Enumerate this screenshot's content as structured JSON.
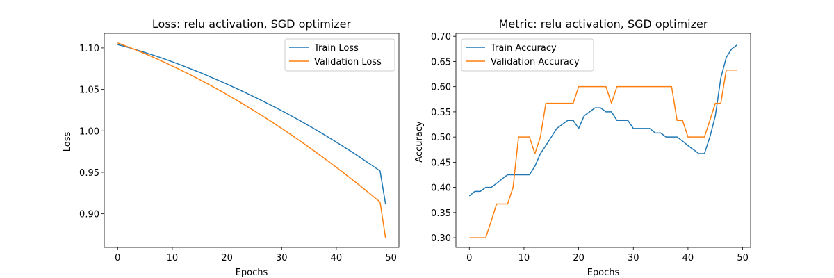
{
  "chart_data": [
    {
      "type": "line",
      "title": "Loss: relu activation, SGD optimizer",
      "xlabel": "Epochs",
      "ylabel": "Loss",
      "xlim": [
        -2.45,
        51.45
      ],
      "ylim": [
        0.8595,
        1.1175
      ],
      "xticks": [
        "0",
        "10",
        "20",
        "30",
        "40",
        "50"
      ],
      "yticks": [
        "0.90",
        "0.95",
        "1.00",
        "1.05",
        "1.10"
      ],
      "legend_position": "upper right",
      "series": [
        {
          "name": "Train Loss",
          "color": "#1f77b4",
          "values": [
            1.104,
            1.1023,
            1.1005,
            1.0985,
            1.0965,
            1.0945,
            1.0923,
            1.0902,
            1.0879,
            1.0856,
            1.0832,
            1.0808,
            1.0783,
            1.0757,
            1.0731,
            1.0705,
            1.0677,
            1.0649,
            1.0621,
            1.0592,
            1.0563,
            1.0533,
            1.0503,
            1.0472,
            1.0441,
            1.0409,
            1.0377,
            1.0344,
            1.0311,
            1.0277,
            1.0243,
            1.0208,
            1.0172,
            1.0136,
            1.0099,
            1.0061,
            1.0023,
            0.9984,
            0.9945,
            0.9905,
            0.9864,
            0.9823,
            0.9781,
            0.9739,
            0.9696,
            0.9652,
            0.9607,
            0.9562,
            0.9516,
            0.912
          ]
        },
        {
          "name": "Validation Loss",
          "color": "#ff7f0e",
          "values": [
            1.106,
            1.1035,
            1.101,
            1.0984,
            1.0957,
            1.093,
            1.0902,
            1.0873,
            1.0843,
            1.0813,
            1.0782,
            1.0751,
            1.0718,
            1.0686,
            1.0652,
            1.0618,
            1.0583,
            1.0548,
            1.0511,
            1.0475,
            1.0437,
            1.0399,
            1.0361,
            1.0321,
            1.0281,
            1.0241,
            1.02,
            1.0158,
            1.0116,
            1.0073,
            1.0029,
            0.9985,
            0.994,
            0.9895,
            0.9849,
            0.9802,
            0.9755,
            0.9707,
            0.9659,
            0.961,
            0.956,
            0.951,
            0.9459,
            0.9408,
            0.9356,
            0.9303,
            0.925,
            0.9196,
            0.9142,
            0.871
          ]
        }
      ]
    },
    {
      "type": "line",
      "title": "Metric: relu activation, SGD optimizer",
      "xlabel": "Epochs",
      "ylabel": "Accuracy",
      "xlim": [
        -2.45,
        51.45
      ],
      "ylim": [
        0.2808,
        0.7058
      ],
      "xticks": [
        "0",
        "10",
        "20",
        "30",
        "40",
        "50"
      ],
      "yticks": [
        "0.30",
        "0.35",
        "0.40",
        "0.45",
        "0.50",
        "0.55",
        "0.60",
        "0.65",
        "0.70"
      ],
      "legend_position": "upper left",
      "series": [
        {
          "name": "Train Accuracy",
          "color": "#1f77b4",
          "values": [
            0.383,
            0.392,
            0.392,
            0.4,
            0.4,
            0.408,
            0.417,
            0.425,
            0.425,
            0.425,
            0.425,
            0.425,
            0.442,
            0.467,
            0.483,
            0.5,
            0.517,
            0.525,
            0.533,
            0.533,
            0.517,
            0.542,
            0.55,
            0.558,
            0.558,
            0.55,
            0.55,
            0.533,
            0.533,
            0.533,
            0.517,
            0.517,
            0.517,
            0.517,
            0.508,
            0.508,
            0.5,
            0.5,
            0.5,
            0.492,
            0.483,
            0.475,
            0.467,
            0.467,
            0.5,
            0.542,
            0.617,
            0.658,
            0.675,
            0.683
          ]
        },
        {
          "name": "Validation Accuracy",
          "color": "#ff7f0e",
          "values": [
            0.3,
            0.3,
            0.3,
            0.3,
            0.333,
            0.367,
            0.367,
            0.367,
            0.4,
            0.5,
            0.5,
            0.5,
            0.467,
            0.5,
            0.567,
            0.567,
            0.567,
            0.567,
            0.567,
            0.567,
            0.6,
            0.6,
            0.6,
            0.6,
            0.6,
            0.6,
            0.567,
            0.6,
            0.6,
            0.6,
            0.6,
            0.6,
            0.6,
            0.6,
            0.6,
            0.6,
            0.6,
            0.6,
            0.533,
            0.533,
            0.5,
            0.5,
            0.5,
            0.5,
            0.533,
            0.567,
            0.567,
            0.633,
            0.633,
            0.633
          ]
        }
      ]
    }
  ]
}
